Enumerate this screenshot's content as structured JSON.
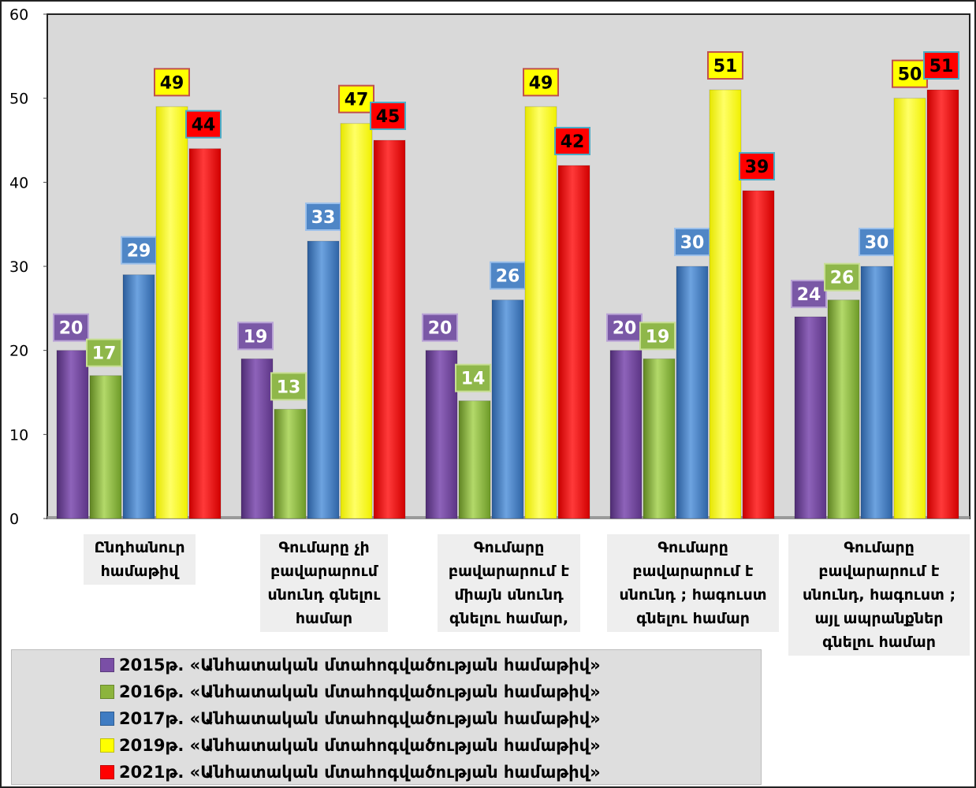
{
  "chart_data": {
    "type": "bar",
    "title": "",
    "xlabel": "",
    "ylabel": "",
    "ylim": [
      0,
      60
    ],
    "y_ticks": [
      0,
      10,
      20,
      30,
      40,
      50,
      60
    ],
    "grid": false,
    "legend_position": "bottom",
    "categories": [
      [
        "Ընդհանուր",
        "համաթիվ"
      ],
      [
        "Գումարը չի",
        "բավարարում",
        "սնունդ գնելու",
        "համար"
      ],
      [
        "Գումարը",
        "բավարարում է",
        "միայն սնունդ",
        "գնելու համար,"
      ],
      [
        "Գումարը",
        "բավարարում է",
        "սնունդ ; հագուստ",
        "գնելու համար"
      ],
      [
        "Գումարը",
        "բավարարում է",
        "սնունդ, հագուստ ;",
        "այլ ապրանքներ",
        "գնելու համար"
      ]
    ],
    "series": [
      {
        "name": "2015թ. «Անհատական մտահոգվածության համաթիվ»",
        "color": "#7a4fa6",
        "values": [
          20,
          19,
          20,
          20,
          24
        ],
        "labels": [
          "20",
          "19",
          "20",
          "20",
          "24"
        ]
      },
      {
        "name": "2016թ. «Անհատական մտահոգվածության համաթիվ»",
        "color": "#8cb43c",
        "values": [
          17,
          13,
          14,
          19,
          26
        ],
        "labels": [
          "17",
          "13",
          "14",
          "19",
          "26"
        ]
      },
      {
        "name": "2017թ. «Անհատական մտահոգվածության համաթիվ»",
        "color": "#3f7cc2",
        "values": [
          29,
          33,
          26,
          30,
          30
        ],
        "labels": [
          "29",
          "33",
          "26",
          "30",
          "30"
        ]
      },
      {
        "name": "2019թ. «Անհատական մտահոգվածության համաթիվ»",
        "color": "#ffff00",
        "values": [
          49,
          47,
          49,
          51,
          50
        ],
        "labels": [
          "49",
          "47",
          "49",
          "51",
          "50"
        ]
      },
      {
        "name": "2021թ. «Անհատական մտահոգվածության համաթիվ»",
        "color": "#ff0000",
        "values": [
          44,
          45,
          42,
          39,
          51
        ],
        "labels": [
          "44",
          "45",
          "42",
          "39",
          "51"
        ]
      }
    ]
  }
}
